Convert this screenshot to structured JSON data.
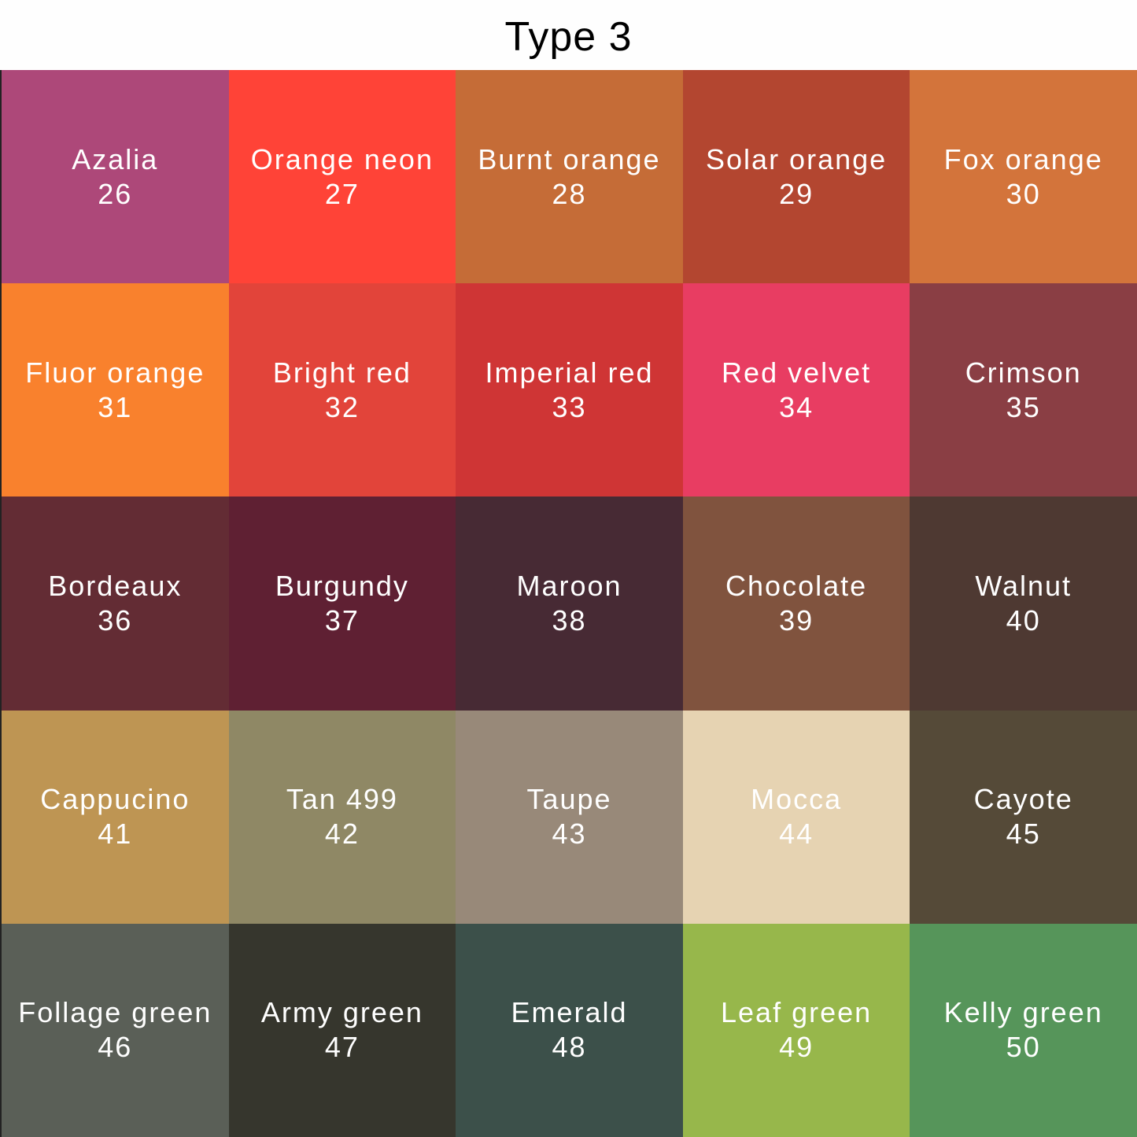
{
  "title": "Type 3",
  "swatches": [
    {
      "name": "Azalia",
      "number": "26",
      "color": "#ad4879"
    },
    {
      "name": "Orange neon",
      "number": "27",
      "color": "#ff4337"
    },
    {
      "name": "Burnt orange",
      "number": "28",
      "color": "#c56c37"
    },
    {
      "name": "Solar orange",
      "number": "29",
      "color": "#b34630"
    },
    {
      "name": "Fox orange",
      "number": "30",
      "color": "#d3743b"
    },
    {
      "name": "Fluor orange",
      "number": "31",
      "color": "#f9812d"
    },
    {
      "name": "Bright red",
      "number": "32",
      "color": "#e2443a"
    },
    {
      "name": "Imperial red",
      "number": "33",
      "color": "#cf3535"
    },
    {
      "name": "Red velvet",
      "number": "34",
      "color": "#e83d62"
    },
    {
      "name": "Crimson",
      "number": "35",
      "color": "#8a3e44"
    },
    {
      "name": "Bordeaux",
      "number": "36",
      "color": "#632c34"
    },
    {
      "name": "Burgundy",
      "number": "37",
      "color": "#5f2033"
    },
    {
      "name": "Maroon",
      "number": "38",
      "color": "#472a34"
    },
    {
      "name": "Chocolate",
      "number": "39",
      "color": "#80533e"
    },
    {
      "name": "Walnut",
      "number": "40",
      "color": "#4e3932"
    },
    {
      "name": "Cappucino",
      "number": "41",
      "color": "#be9553"
    },
    {
      "name": "Tan 499",
      "number": "42",
      "color": "#8f8865"
    },
    {
      "name": "Taupe",
      "number": "43",
      "color": "#988979"
    },
    {
      "name": "Mocca",
      "number": "44",
      "color": "#e6d3b2"
    },
    {
      "name": "Cayote",
      "number": "45",
      "color": "#554a38"
    },
    {
      "name": "Follage green",
      "number": "46",
      "color": "#5a5f57"
    },
    {
      "name": "Army green",
      "number": "47",
      "color": "#36362d"
    },
    {
      "name": "Emerald",
      "number": "48",
      "color": "#3c504a"
    },
    {
      "name": "Leaf green",
      "number": "49",
      "color": "#97b74b"
    },
    {
      "name": "Kelly green",
      "number": "50",
      "color": "#56955a"
    }
  ]
}
